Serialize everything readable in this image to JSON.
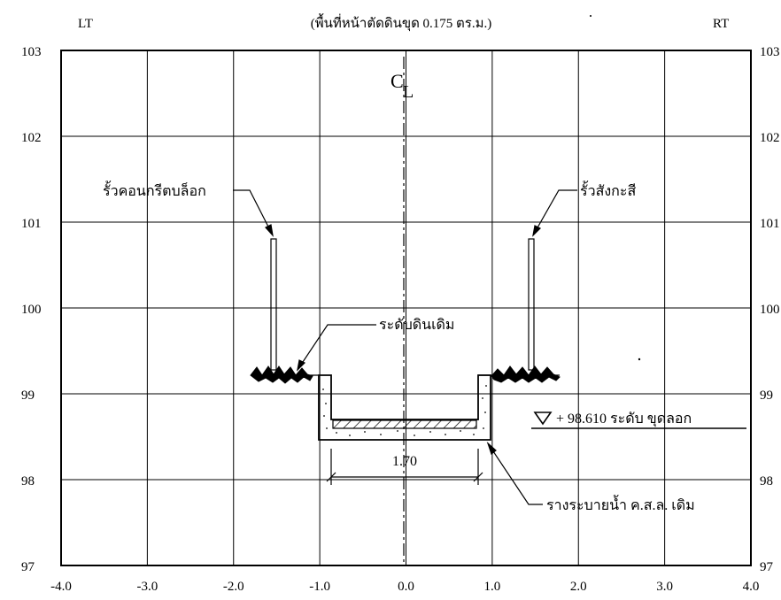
{
  "header": {
    "left_label": "LT",
    "title": "(พื้นที่หน้าตัดดินขุด 0.175 ตร.ม.)",
    "right_label": "RT"
  },
  "axes": {
    "x_ticks": [
      "-4.0",
      "-3.0",
      "-2.0",
      "-1.0",
      "0.0",
      "1.0",
      "2.0",
      "3.0",
      "4.0"
    ],
    "y_ticks_left": [
      "103",
      "102",
      "101",
      "100",
      "99",
      "98",
      "97"
    ],
    "y_ticks_right": [
      "103",
      "102",
      "101",
      "100",
      "99",
      "98",
      "97"
    ]
  },
  "annotations": {
    "centerline_c": "C",
    "centerline_l": "L",
    "left_fence": "รั้วคอนกรีตบล็อก",
    "right_fence": "รั้วสังกะสี",
    "existing_ground": "ระดับดินเดิม",
    "dredge_level": "+ 98.610 ระดับ ขุดลอก",
    "ditch_width": "1.70",
    "ditch": "รางระบายน้ำ ค.ส.ล. เดิม"
  }
}
